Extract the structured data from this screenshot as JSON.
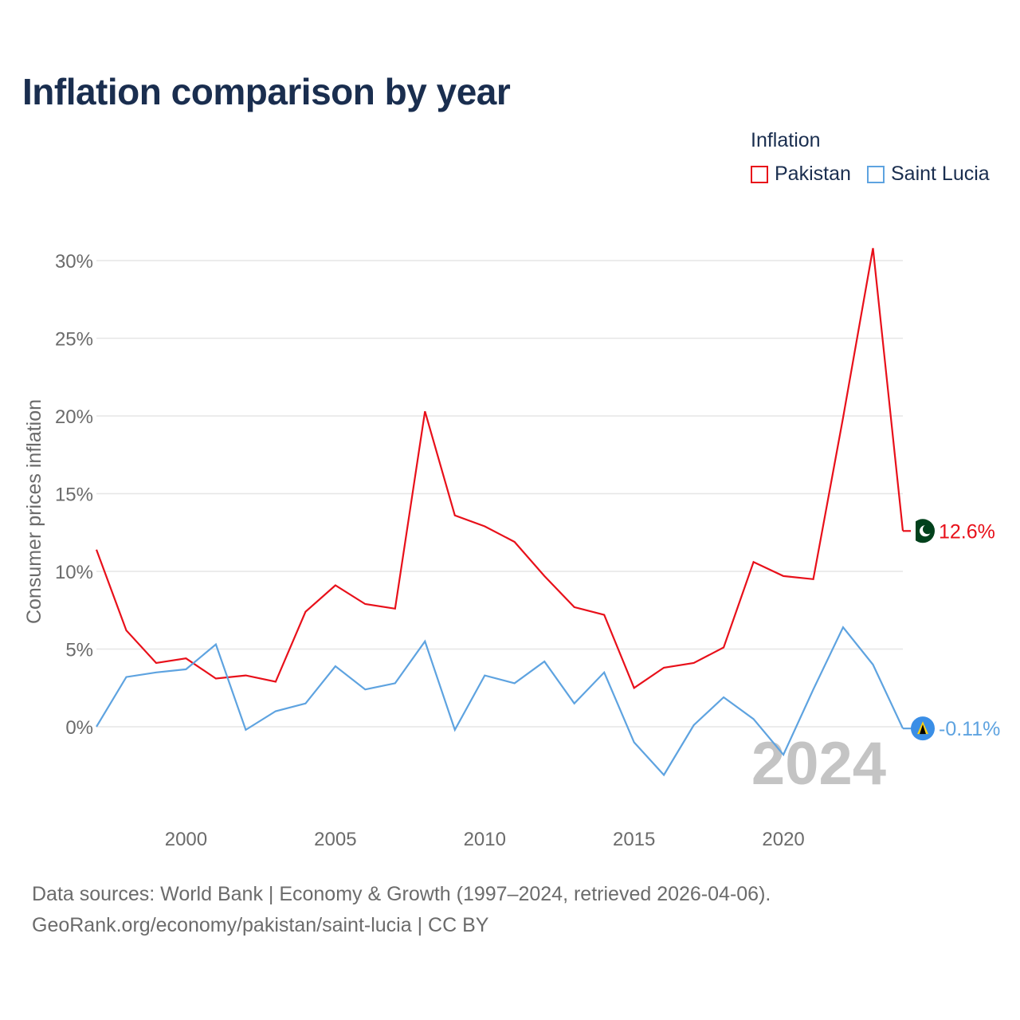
{
  "title": "Inflation comparison by year",
  "legend": {
    "title": "Inflation",
    "items": [
      {
        "label": "Pakistan",
        "color": "#e8101a"
      },
      {
        "label": "Saint Lucia",
        "color": "#5ea3e0"
      }
    ]
  },
  "chart_data": {
    "type": "line",
    "title": "Inflation comparison by year",
    "xlabel": "",
    "ylabel": "Consumer prices inflation",
    "xlim": [
      1997,
      2024
    ],
    "ylim": [
      -5,
      31
    ],
    "x_ticks": [
      2000,
      2005,
      2010,
      2015,
      2020
    ],
    "y_ticks": [
      0,
      5,
      10,
      15,
      20,
      25,
      30
    ],
    "y_tick_labels": [
      "0%",
      "5%",
      "10%",
      "15%",
      "20%",
      "25%",
      "30%"
    ],
    "grid": true,
    "legend_position": "top-right",
    "year_watermark": "2024",
    "x": [
      1997,
      1998,
      1999,
      2000,
      2001,
      2002,
      2003,
      2004,
      2005,
      2006,
      2007,
      2008,
      2009,
      2010,
      2011,
      2012,
      2013,
      2014,
      2015,
      2016,
      2017,
      2018,
      2019,
      2020,
      2021,
      2022,
      2023,
      2024
    ],
    "series": [
      {
        "name": "Pakistan",
        "color": "#e8101a",
        "end_label": "12.6%",
        "flag_icon": "pakistan-flag-icon",
        "values": [
          11.4,
          6.2,
          4.1,
          4.4,
          3.1,
          3.3,
          2.9,
          7.4,
          9.1,
          7.9,
          7.6,
          20.3,
          13.6,
          12.9,
          11.9,
          9.7,
          7.7,
          7.2,
          2.5,
          3.8,
          4.1,
          5.1,
          10.6,
          9.7,
          9.5,
          19.9,
          30.8,
          12.6
        ]
      },
      {
        "name": "Saint Lucia",
        "color": "#5ea3e0",
        "end_label": "-0.11%",
        "flag_icon": "saint-lucia-flag-icon",
        "values": [
          0.0,
          3.2,
          3.5,
          3.7,
          5.3,
          -0.2,
          1.0,
          1.5,
          3.9,
          2.4,
          2.8,
          5.5,
          -0.2,
          3.3,
          2.8,
          4.2,
          1.5,
          3.5,
          -1.0,
          -3.1,
          0.1,
          1.9,
          0.5,
          -1.8,
          2.4,
          6.4,
          4.0,
          -0.11
        ]
      }
    ]
  },
  "source": {
    "line1": "Data sources: World Bank | Economy & Growth (1997–2024, retrieved 2026-04-06).",
    "line2": "GeoRank.org/economy/pakistan/saint-lucia | CC BY"
  }
}
